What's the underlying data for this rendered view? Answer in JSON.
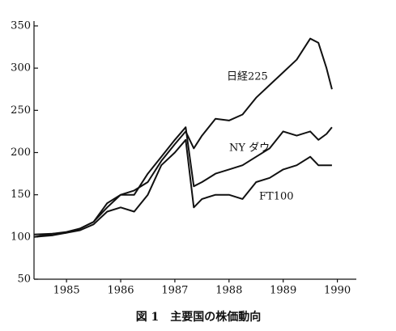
{
  "chart_data": {
    "type": "line",
    "caption": "図 1　主要国の株価動向",
    "x": [
      1984.9,
      1985.25,
      1985.5,
      1985.75,
      1986,
      1986.25,
      1986.5,
      1986.75,
      1987,
      1987.25,
      1987.5,
      1987.7,
      1987.85,
      1988,
      1988.25,
      1988.5,
      1988.75,
      1989,
      1989.25,
      1989.5,
      1989.75,
      1990,
      1990.15,
      1990.3,
      1990.4
    ],
    "series": [
      {
        "name": "日経225",
        "color": "#111111",
        "values": [
          100,
          104,
          105,
          110,
          118,
          135,
          150,
          155,
          165,
          190,
          210,
          225,
          205,
          220,
          240,
          238,
          245,
          265,
          280,
          295,
          310,
          335,
          330,
          300,
          275
        ]
      },
      {
        "name": "NY ダウ",
        "color": "#111111",
        "values": [
          103,
          104,
          106,
          110,
          118,
          140,
          150,
          150,
          175,
          195,
          215,
          230,
          160,
          165,
          175,
          180,
          185,
          195,
          205,
          225,
          220,
          225,
          215,
          222,
          230
        ]
      },
      {
        "name": "FT100",
        "color": "#111111",
        "values": [
          100,
          102,
          105,
          108,
          115,
          130,
          135,
          130,
          150,
          185,
          200,
          215,
          135,
          145,
          150,
          150,
          145,
          165,
          170,
          180,
          185,
          195,
          185,
          185,
          185
        ]
      }
    ],
    "xlim": [
      1984.9,
      1990.85
    ],
    "xticks": [
      {
        "value": 1985.5,
        "label": "1985"
      },
      {
        "value": 1986.5,
        "label": "1986"
      },
      {
        "value": 1987.5,
        "label": "1987"
      },
      {
        "value": 1988.5,
        "label": "1988"
      },
      {
        "value": 1989.5,
        "label": "1989"
      },
      {
        "value": 1990.5,
        "label": "1990"
      }
    ],
    "ylim": [
      50,
      350
    ],
    "yticks": [
      50,
      100,
      150,
      200,
      250,
      300,
      350
    ]
  }
}
